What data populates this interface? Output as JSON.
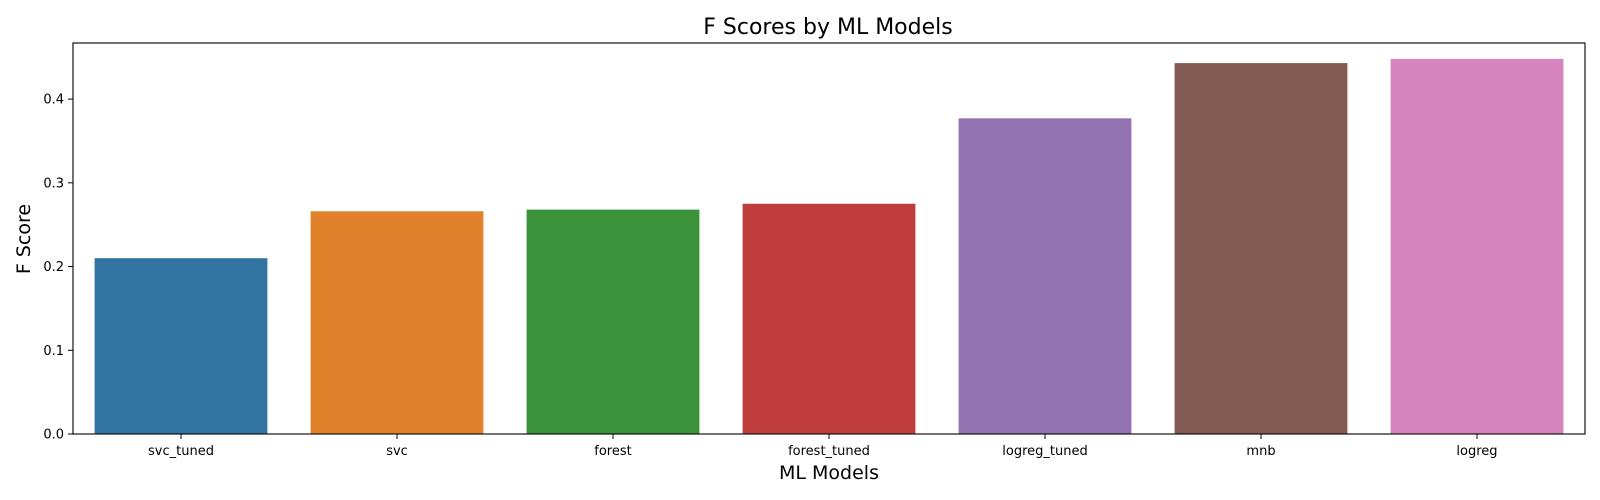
{
  "chart_data": {
    "type": "bar",
    "title": "F Scores by ML Models",
    "xlabel": "ML Models",
    "ylabel": "F Score",
    "categories": [
      "svc_tuned",
      "svc",
      "forest",
      "forest_tuned",
      "logreg_tuned",
      "mnb",
      "logreg"
    ],
    "values": [
      0.21,
      0.266,
      0.268,
      0.275,
      0.377,
      0.443,
      0.448
    ],
    "colors": [
      "#3274a1",
      "#e1812c",
      "#3a923a",
      "#c03d3e",
      "#9372b2",
      "#845b53",
      "#d684bd"
    ],
    "ylim": [
      0,
      0.467
    ],
    "yticks": [
      0.0,
      0.1,
      0.2,
      0.3,
      0.4
    ],
    "ytick_labels": [
      "0.0",
      "0.1",
      "0.2",
      "0.3",
      "0.4"
    ],
    "grid": false,
    "legend": "none"
  }
}
